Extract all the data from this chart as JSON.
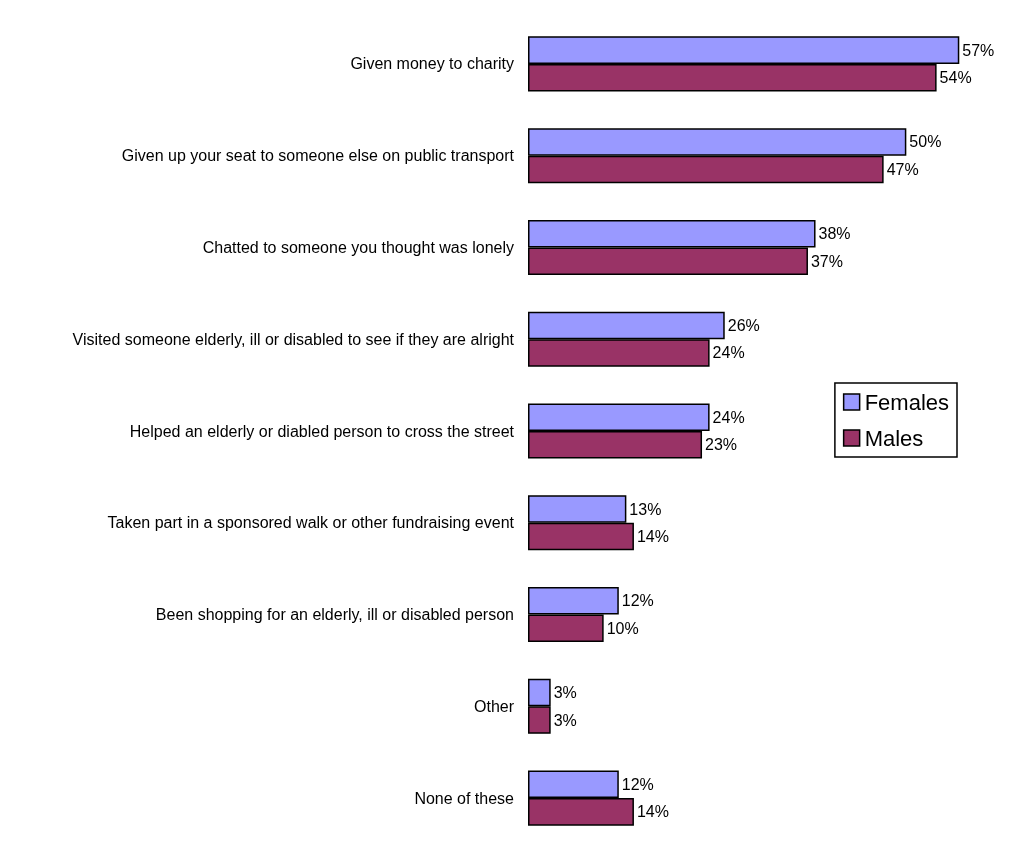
{
  "chart_data": {
    "type": "bar",
    "orientation": "horizontal",
    "categories": [
      "Given money to charity",
      "Given up your seat to someone else on public transport",
      "Chatted to someone you thought was lonely",
      "Visited someone elderly, ill or disabled to see if they are alright",
      "Helped an elderly or diabled person to cross the street",
      "Taken part in a sponsored walk or other fundraising event",
      "Been shopping for an elderly, ill or disabled person",
      "Other",
      "None of these"
    ],
    "series": [
      {
        "name": "Females",
        "color": "#9999ff",
        "values": [
          57,
          50,
          38,
          26,
          24,
          13,
          12,
          3,
          12
        ],
        "value_labels": [
          "57%",
          "50%",
          "38%",
          "26%",
          "24%",
          "13%",
          "12%",
          "3%",
          "12%"
        ]
      },
      {
        "name": "Males",
        "color": "#993366",
        "values": [
          54,
          47,
          37,
          24,
          23,
          14,
          10,
          3,
          14
        ],
        "value_labels": [
          "54%",
          "47%",
          "37%",
          "24%",
          "23%",
          "14%",
          "10%",
          "3%",
          "14%"
        ]
      }
    ],
    "legend": "right"
  }
}
